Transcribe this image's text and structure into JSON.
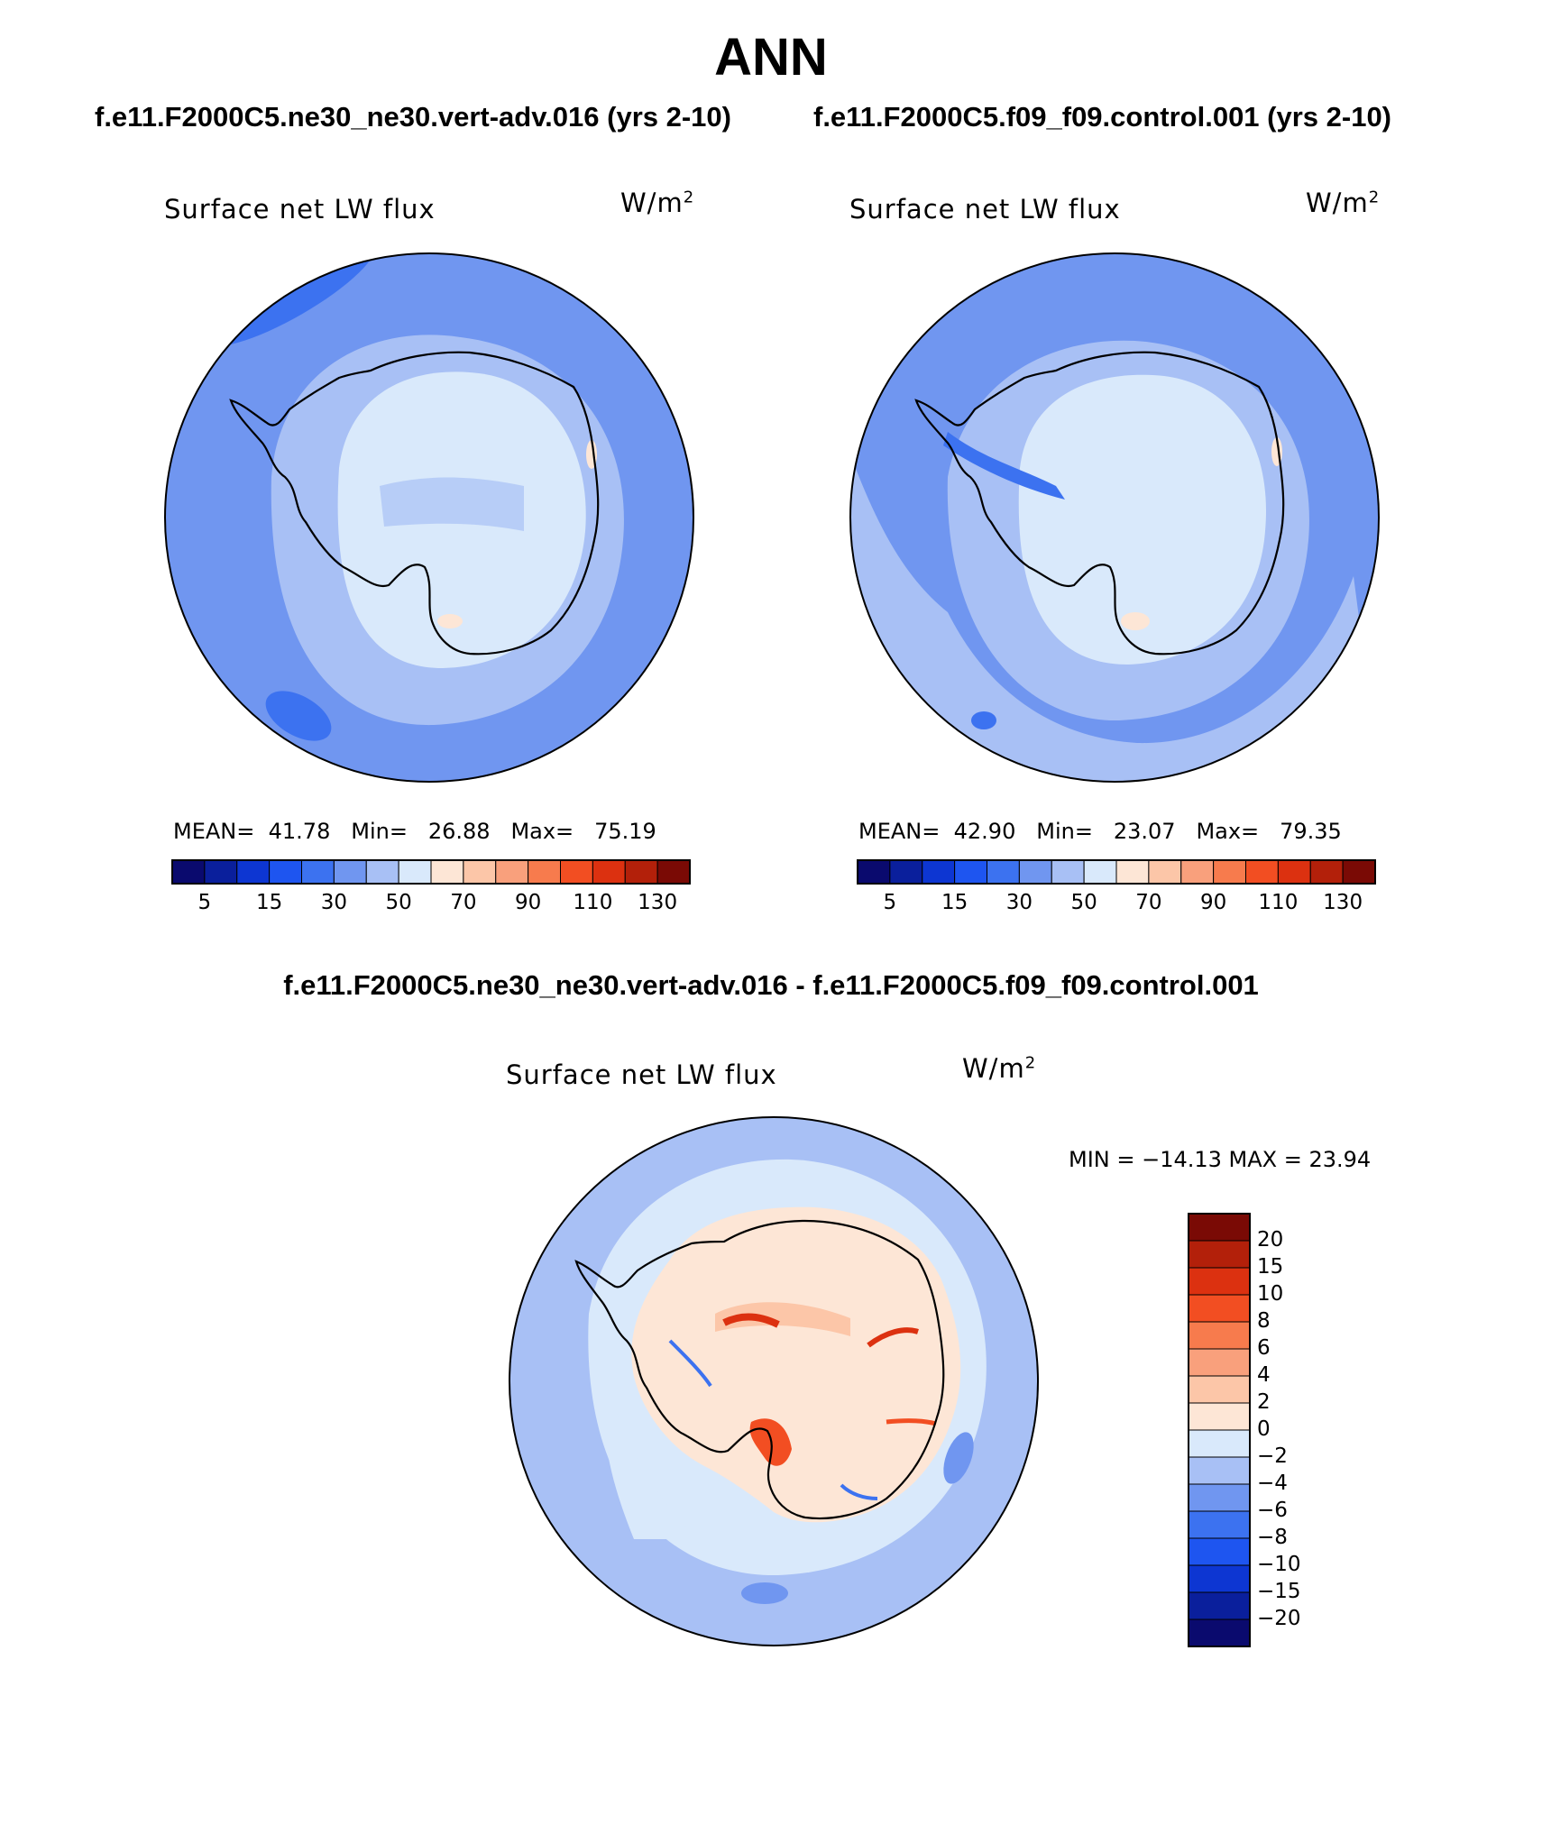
{
  "title": "ANN",
  "panels": [
    {
      "case": "f.e11.F2000C5.ne30_ne30.vert-adv.016 (yrs 2-10)",
      "variable": "Surface net LW flux",
      "units": "W/m",
      "units_sup": "2",
      "stats": {
        "mean_label": "MEAN=",
        "mean": "41.78",
        "min_label": "Min=",
        "min": "26.88",
        "max_label": "Max=",
        "max": "75.19"
      }
    },
    {
      "case": "f.e11.F2000C5.f09_f09.control.001 (yrs 2-10)",
      "variable": "Surface net LW flux",
      "units": "W/m",
      "units_sup": "2",
      "stats": {
        "mean_label": "MEAN=",
        "mean": "42.90",
        "min_label": "Min=",
        "min": "23.07",
        "max_label": "Max=",
        "max": "79.35"
      }
    }
  ],
  "colorbar": {
    "ticks": [
      "5",
      "15",
      "30",
      "50",
      "70",
      "90",
      "110",
      "130"
    ],
    "colors": [
      "#0a0a6e",
      "#0a1f9c",
      "#0d36d2",
      "#1e55f0",
      "#3c72f0",
      "#7096f0",
      "#a8c0f5",
      "#d9e9fb",
      "#fde6d6",
      "#fcc6a8",
      "#f9a07c",
      "#f77b4d",
      "#f24e22",
      "#dc3110",
      "#b3200a",
      "#7a0a05"
    ]
  },
  "difference": {
    "title": "f.e11.F2000C5.ne30_ne30.vert-adv.016 - f.e11.F2000C5.f09_f09.control.001",
    "variable": "Surface net LW flux",
    "units": "W/m",
    "units_sup": "2",
    "minmax": "MIN = −14.13 MAX =  23.94",
    "colorbar": {
      "ticks": [
        "20",
        "15",
        "10",
        "8",
        "6",
        "4",
        "2",
        "0",
        "−2",
        "−4",
        "−6",
        "−8",
        "−10",
        "−15",
        "−20"
      ],
      "colors": [
        "#7a0a05",
        "#b3200a",
        "#dc3110",
        "#f24e22",
        "#f77b4d",
        "#f9a07c",
        "#fcc6a8",
        "#fde6d6",
        "#d9e9fb",
        "#a8c0f5",
        "#7096f0",
        "#3c72f0",
        "#1e55f0",
        "#0d36d2",
        "#0a1f9c",
        "#0a0a6e"
      ]
    }
  }
}
